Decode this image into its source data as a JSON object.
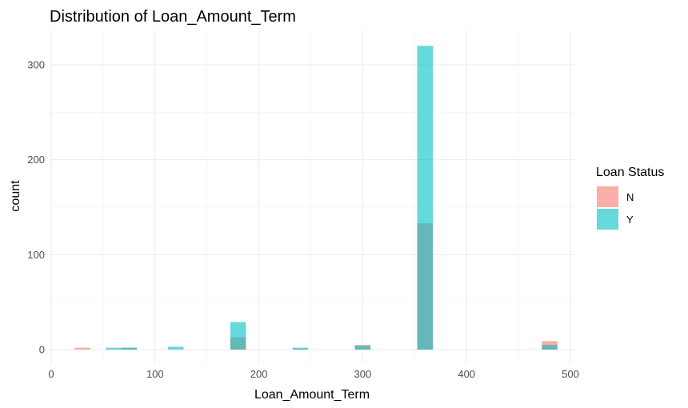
{
  "chart_data": {
    "type": "histogram",
    "title": "Distribution of Loan_Amount_Term",
    "xlabel": "Loan_Amount_Term",
    "ylabel": "count",
    "xlim": [
      0,
      500
    ],
    "ylim": [
      0,
      330
    ],
    "x_ticks": [
      0,
      100,
      200,
      300,
      400,
      500
    ],
    "y_ticks": [
      0,
      100,
      200,
      300
    ],
    "grid": true,
    "bin_width": 15,
    "legend": {
      "title": "Loan Status",
      "placement": "right"
    },
    "series": [
      {
        "name": "N",
        "color": "#F8766D",
        "opacity": 0.6,
        "bins": [
          {
            "x": 30,
            "count": 2
          },
          {
            "x": 75,
            "count": 2
          },
          {
            "x": 180,
            "count": 13
          },
          {
            "x": 240,
            "count": 1
          },
          {
            "x": 300,
            "count": 5
          },
          {
            "x": 360,
            "count": 133
          },
          {
            "x": 480,
            "count": 9
          }
        ]
      },
      {
        "name": "Y",
        "color": "#00BFC4",
        "opacity": 0.6,
        "bins": [
          {
            "x": 60,
            "count": 2
          },
          {
            "x": 75,
            "count": 2
          },
          {
            "x": 120,
            "count": 3
          },
          {
            "x": 180,
            "count": 29
          },
          {
            "x": 240,
            "count": 2
          },
          {
            "x": 300,
            "count": 4
          },
          {
            "x": 360,
            "count": 320
          },
          {
            "x": 480,
            "count": 5
          }
        ]
      }
    ]
  }
}
